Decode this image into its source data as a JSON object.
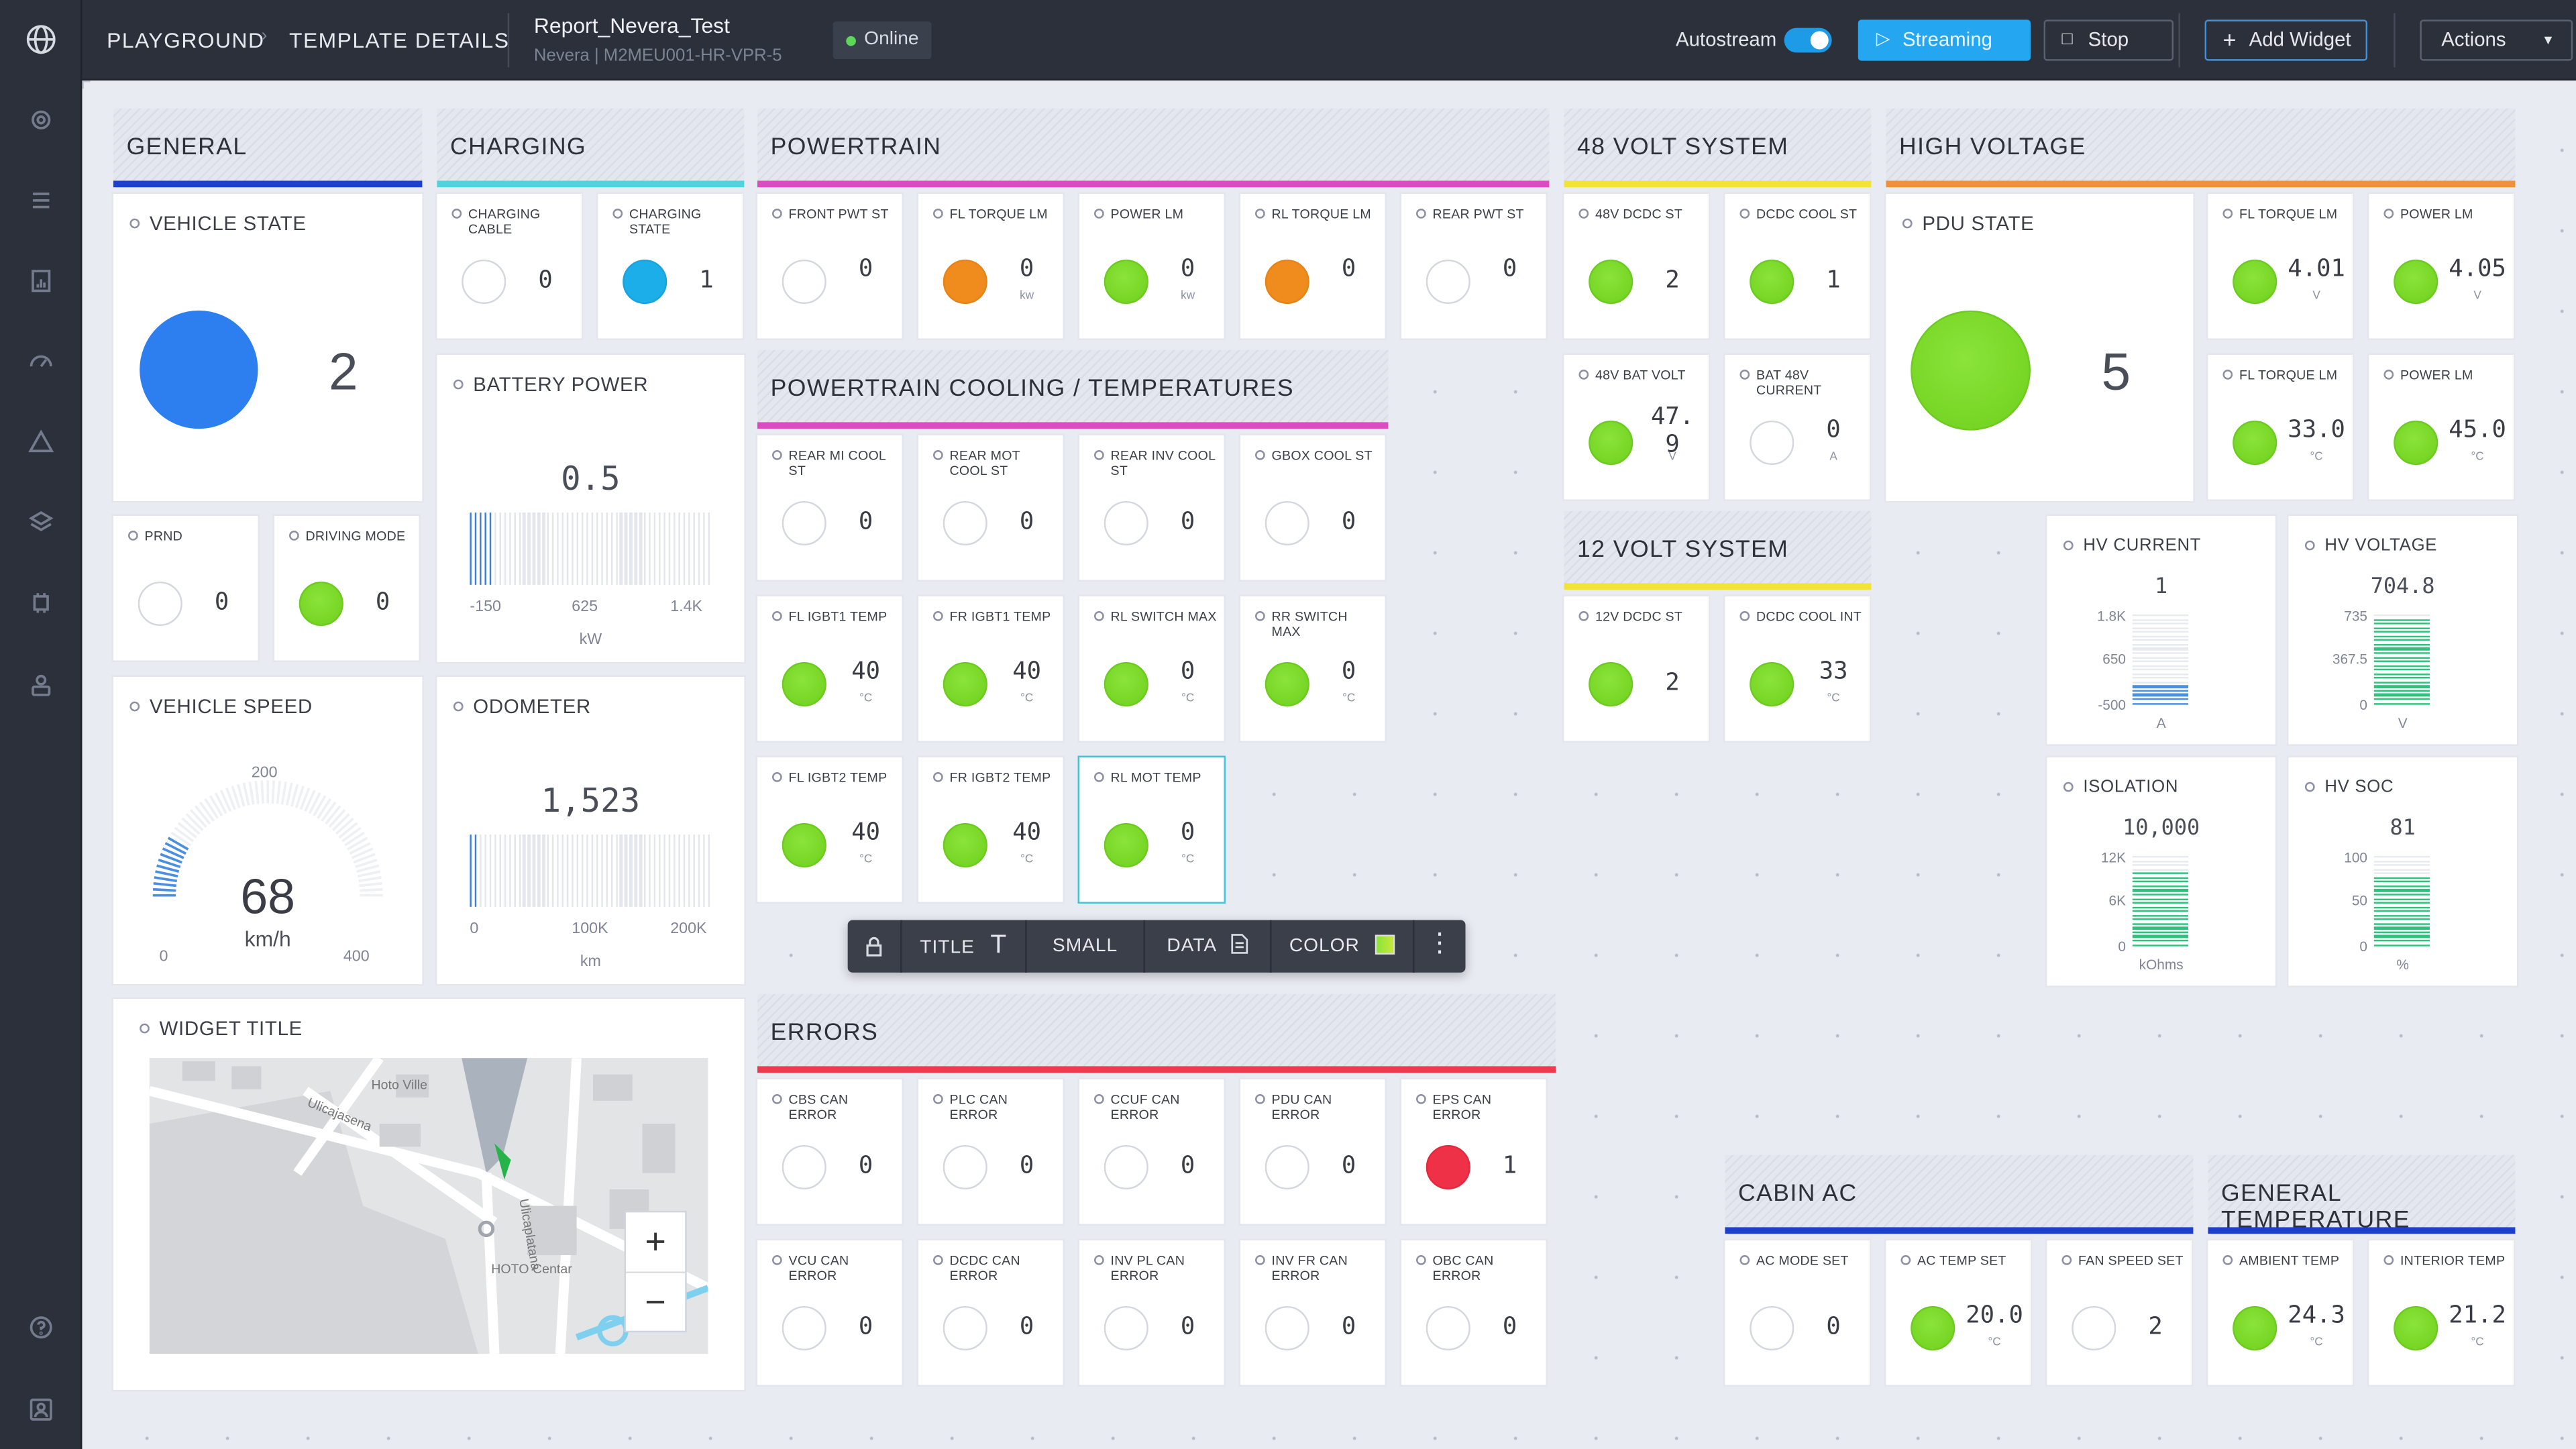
{
  "header": {
    "crumb_playground": "PLAYGROUND",
    "crumb_sep": "›",
    "crumb_template": "TEMPLATE DETAILS",
    "report_title": "Report_Nevera_Test",
    "report_sub": "Nevera | M2MEU001-HR-VPR-5",
    "status": "Online",
    "autostream": "Autostream",
    "streaming": "Streaming",
    "stop": "Stop",
    "add_widget": "Add Widget",
    "actions": "Actions"
  },
  "nav_icons": [
    "globe-icon",
    "speed-sensor-icon",
    "list-icon",
    "report-icon",
    "gauge-icon",
    "alert-triangle-icon",
    "layers-icon",
    "chip-icon",
    "users-icon",
    "help-icon",
    "account-icon"
  ],
  "sections": {
    "general": "GENERAL",
    "charging": "CHARGING",
    "powertrain": "POWERTRAIN",
    "volt48": "48 VOLT SYSTEM",
    "high_voltage": "HIGH VOLTAGE",
    "pt_cooling": "POWERTRAIN COOLING / TEMPERATURES",
    "volt12": "12 VOLT SYSTEM",
    "errors": "ERRORS",
    "cabin_ac": "CABIN AC",
    "general_temp": "GENERAL TEMPERATURE"
  },
  "section_colors": {
    "general": "#1c3fd0",
    "charging": "#4fd4df",
    "powertrain": "#de4ac0",
    "volt48": "#f2e23a",
    "high_voltage": "#f0913a",
    "pt_cooling": "#de4ac0",
    "volt12": "#f2e23a",
    "errors": "#ec3b4c",
    "cabin_ac": "#1c3fd0",
    "general_temp": "#1c3fd0"
  },
  "general": {
    "vehicle_state": {
      "label": "VEHICLE STATE",
      "value": "2"
    },
    "prnd": {
      "label": "PRND",
      "value": "0"
    },
    "driving_mode": {
      "label": "DRIVING MODE",
      "value": "0"
    },
    "vehicle_speed": {
      "label": "VEHICLE SPEED",
      "value": "68",
      "unit": "km/h",
      "min": "0",
      "mid": "200",
      "max": "400"
    },
    "map": {
      "label": "WIDGET TITLE",
      "place1": "Hoto Ville",
      "place2": "Ulicajasena",
      "place3": "Ulicaplatana",
      "place4": "HOTO Centar",
      "zoom_in": "+",
      "zoom_out": "−"
    }
  },
  "charging": {
    "cable": {
      "label": "CHARGING CABLE",
      "value": "0"
    },
    "state": {
      "label": "CHARGING STATE",
      "value": "1"
    },
    "battery_power": {
      "label": "BATTERY POWER",
      "value": "0.5",
      "t_min": "-150",
      "t_mid": "625",
      "t_max": "1.4K",
      "unit": "kW"
    },
    "odometer": {
      "label": "ODOMETER",
      "value": "1,523",
      "t_min": "0",
      "t_mid": "100K",
      "t_max": "200K",
      "unit": "km"
    }
  },
  "powertrain": [
    {
      "label": "FRONT PWT ST",
      "value": "0",
      "unit": ""
    },
    {
      "label": "FL TORQUE LM",
      "value": "0",
      "unit": "kw"
    },
    {
      "label": "POWER LM",
      "value": "0",
      "unit": "kw"
    },
    {
      "label": "RL TORQUE LM",
      "value": "0",
      "unit": ""
    },
    {
      "label": "REAR PWT ST",
      "value": "0",
      "unit": ""
    }
  ],
  "cooling": [
    {
      "label": "REAR MI COOL ST",
      "value": "0",
      "unit": ""
    },
    {
      "label": "REAR MOT COOL ST",
      "value": "0",
      "unit": ""
    },
    {
      "label": "REAR INV COOL ST",
      "value": "0",
      "unit": ""
    },
    {
      "label": "GBOX COOL ST",
      "value": "0",
      "unit": ""
    },
    {
      "label": "FL IGBT1 TEMP",
      "value": "40",
      "unit": "°C"
    },
    {
      "label": "FR IGBT1 TEMP",
      "value": "40",
      "unit": "°C"
    },
    {
      "label": "RL SWITCH MAX",
      "value": "0",
      "unit": "°C"
    },
    {
      "label": "RR SWITCH MAX",
      "value": "0",
      "unit": "°C"
    },
    {
      "label": "FL IGBT2 TEMP",
      "value": "40",
      "unit": "°C"
    },
    {
      "label": "FR IGBT2 TEMP",
      "value": "40",
      "unit": "°C"
    },
    {
      "label": "RL MOT TEMP",
      "value": "0",
      "unit": "°C"
    }
  ],
  "toolbar": {
    "title": "TITLE",
    "size": "SMALL",
    "data": "DATA",
    "color": "COLOR",
    "lock_icon": "lock-icon",
    "more_icon": "more-vertical-icon"
  },
  "errors": [
    {
      "label": "CBS CAN ERROR",
      "value": "0"
    },
    {
      "label": "PLC CAN ERROR",
      "value": "0"
    },
    {
      "label": "CCUF CAN ERROR",
      "value": "0"
    },
    {
      "label": "PDU CAN ERROR",
      "value": "0"
    },
    {
      "label": "EPS CAN ERROR",
      "value": "1"
    },
    {
      "label": "VCU CAN ERROR",
      "value": "0"
    },
    {
      "label": "DCDC CAN ERROR",
      "value": "0"
    },
    {
      "label": "INV PL CAN ERROR",
      "value": "0"
    },
    {
      "label": "INV FR CAN ERROR",
      "value": "0"
    },
    {
      "label": "OBC CAN ERROR",
      "value": "0"
    }
  ],
  "volt48": [
    {
      "label": "48V DCDC ST",
      "value": "2",
      "unit": ""
    },
    {
      "label": "DCDC COOL ST",
      "value": "1",
      "unit": ""
    },
    {
      "label": "48V BAT VOLT",
      "value": "47.",
      "value2": "9",
      "unit": "V"
    },
    {
      "label": "BAT 48V CURRENT",
      "value": "0",
      "unit": "A"
    }
  ],
  "volt12": [
    {
      "label": "12V DCDC ST",
      "value": "2",
      "unit": ""
    },
    {
      "label": "DCDC COOL INT",
      "value": "33",
      "unit": "°C"
    }
  ],
  "hv": {
    "pdu_state": {
      "label": "PDU STATE",
      "value": "5"
    },
    "tiles": [
      {
        "label": "FL TORQUE LM",
        "value": "4.01",
        "unit": "V"
      },
      {
        "label": "POWER LM",
        "value": "4.05",
        "unit": "V"
      },
      {
        "label": "FL TORQUE LM",
        "value": "33.0",
        "unit": "°C"
      },
      {
        "label": "POWER LM",
        "value": "45.0",
        "unit": "°C"
      }
    ],
    "current": {
      "label": "HV CURRENT",
      "value": "1",
      "t_max": "1.8K",
      "t_mid": "650",
      "t_min": "-500",
      "unit": "A"
    },
    "voltage": {
      "label": "HV VOLTAGE",
      "value": "704.8",
      "t_max": "735",
      "t_mid": "367.5",
      "t_min": "0",
      "unit": "V"
    },
    "isolation": {
      "label": "ISOLATION",
      "value": "10,000",
      "t_max": "12K",
      "t_mid": "6K",
      "t_min": "0",
      "unit": "kOhms"
    },
    "soc": {
      "label": "HV SOC",
      "value": "81",
      "t_max": "100",
      "t_mid": "50",
      "t_min": "0",
      "unit": "%"
    }
  },
  "cabin_ac": [
    {
      "label": "AC MODE SET",
      "value": "0",
      "unit": ""
    },
    {
      "label": "AC TEMP SET",
      "value": "20.0",
      "unit": "°C"
    },
    {
      "label": "FAN SPEED SET",
      "value": "2",
      "unit": ""
    }
  ],
  "general_temp": [
    {
      "label": "AMBIENT TEMP",
      "value": "24.3",
      "unit": "°C"
    },
    {
      "label": "INTERIOR TEMP",
      "value": "21.2",
      "unit": "°C"
    }
  ],
  "chart_data": [
    {
      "type": "bar",
      "title": "BATTERY POWER",
      "value": 0.5,
      "xlim": [
        -150,
        1400
      ],
      "xlabel": "kW"
    },
    {
      "type": "bar",
      "title": "ODOMETER",
      "value": 1523,
      "xlim": [
        0,
        200000
      ],
      "xlabel": "km"
    },
    {
      "type": "bar",
      "title": "HV CURRENT",
      "value": 1,
      "ylim": [
        -500,
        1800
      ],
      "ylabel": "A"
    },
    {
      "type": "bar",
      "title": "HV VOLTAGE",
      "value": 704.8,
      "ylim": [
        0,
        735
      ],
      "ylabel": "V"
    },
    {
      "type": "bar",
      "title": "ISOLATION",
      "value": 10000,
      "ylim": [
        0,
        12000
      ],
      "ylabel": "kOhms"
    },
    {
      "type": "bar",
      "title": "HV SOC",
      "value": 81,
      "ylim": [
        0,
        100
      ],
      "ylabel": "%"
    }
  ]
}
